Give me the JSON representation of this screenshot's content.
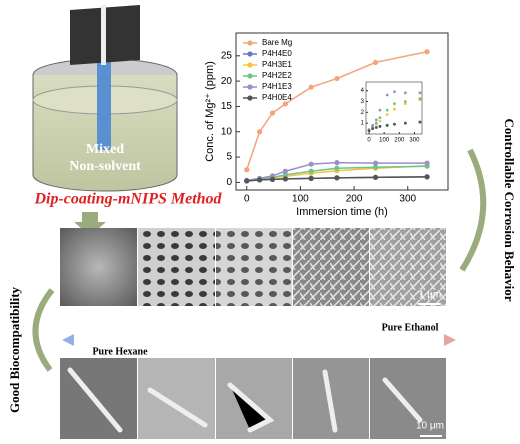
{
  "beaker_text": [
    "Mixed",
    "Non-solvent"
  ],
  "method": "Dip-coating-mNIPS Method",
  "left_label": "Good Biocompatibility",
  "right_label": "Controllable Corrosion Behavior",
  "gradient_left": "Pure Hexane",
  "gradient_right": "Pure Ethanol",
  "scale_top": "1 μm",
  "scale_bottom": "10 μm",
  "chart_data": {
    "type": "line",
    "y_label": "Conc. of Mg²⁺ (ppm)",
    "x_label": "Immersion time (h)",
    "x": [
      0,
      24,
      48,
      72,
      120,
      168,
      240,
      336
    ],
    "series": [
      {
        "name": "Bare Mg",
        "color": "#f4a47a",
        "values": [
          2.5,
          10,
          13.7,
          15.5,
          18.8,
          20.5,
          23.7,
          25.8
        ]
      },
      {
        "name": "P4H4E0",
        "color": "#5b7fc0",
        "values": [
          0.3,
          0.5,
          0.6,
          0.7,
          0.8,
          0.9,
          1.0,
          1.1
        ]
      },
      {
        "name": "P4H3E1",
        "color": "#f2c53d",
        "values": [
          0.3,
          0.6,
          0.9,
          1.2,
          1.8,
          2.3,
          2.8,
          3.3
        ]
      },
      {
        "name": "P4H2E2",
        "color": "#6cc58a",
        "values": [
          0.3,
          0.7,
          1.0,
          1.5,
          2.2,
          2.8,
          3.0,
          3.2
        ]
      },
      {
        "name": "P4H1E3",
        "color": "#9b8fc7",
        "values": [
          0.4,
          0.8,
          1.3,
          2.2,
          3.6,
          3.9,
          3.8,
          3.8
        ]
      },
      {
        "name": "P4H0E4",
        "color": "#555555",
        "values": [
          0.3,
          0.5,
          0.6,
          0.7,
          0.8,
          0.9,
          1.0,
          1.1
        ]
      }
    ],
    "xlim": [
      -20,
      375
    ],
    "ylim": [
      -1.5,
      29.5
    ],
    "xticks": [
      0,
      100,
      200,
      300
    ],
    "yticks": [
      0,
      5,
      10,
      15,
      20,
      25
    ],
    "inset": {
      "xlim": [
        -20,
        350
      ],
      "ylim": [
        0,
        4.8
      ],
      "xticks": [
        0,
        100,
        200,
        300
      ],
      "yticks": [
        1,
        2,
        3,
        4
      ]
    }
  }
}
